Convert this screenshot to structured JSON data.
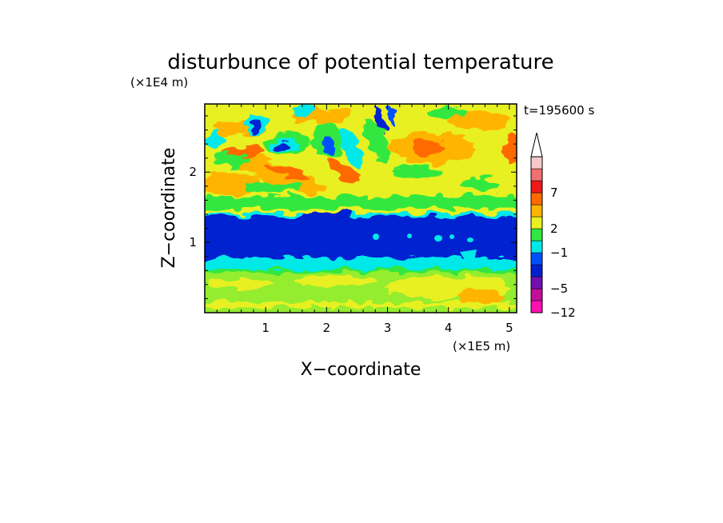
{
  "chart_data": {
    "type": "heatmap",
    "title": "disturbunce of potential temperature",
    "xlabel": "X−coordinate",
    "ylabel": "Z−coordinate",
    "x_unit": "(×1E5 m)",
    "y_unit": "(×1E4 m)",
    "time_label": "t=195600 s",
    "xlim": [
      0,
      5.12
    ],
    "ylim": [
      0,
      2.97
    ],
    "x_ticks": [
      "1",
      "2",
      "3",
      "4",
      "5"
    ],
    "y_ticks": [
      "1",
      "2"
    ],
    "colorbar": {
      "tick_labels": [
        "7",
        "2",
        "−1",
        "−5",
        "−12"
      ],
      "colors": [
        "#ff10b0",
        "#c0109a",
        "#7010b0",
        "#0020d0",
        "#0050ff",
        "#00e8e8",
        "#30e840",
        "#e8f020",
        "#ffb400",
        "#ff6a00",
        "#f01818",
        "#f07070",
        "#f8c8c8"
      ]
    },
    "fields": {
      "background_level": "green",
      "bands": [
        {
          "name": "lower strong negative band",
          "z_range": [
            0.88,
            1.33
          ],
          "level": "dark blue"
        },
        {
          "name": "upper band",
          "z_range": [
            1.4,
            2.97
          ],
          "level": "yellow/orange"
        },
        {
          "name": "low-level band",
          "z_range": [
            0,
            0.88
          ],
          "level": "green/yellow"
        }
      ],
      "notable_features": [
        {
          "name": "warm maximum",
          "x": 3.7,
          "z": 2.4,
          "level": "orange"
        },
        {
          "name": "cold cells",
          "x_range": [
            0.5,
            2.0
          ],
          "z_range": [
            2.2,
            2.9
          ],
          "level": "blue"
        },
        {
          "name": "tilted warm wave",
          "x_range": [
            0.5,
            2.5
          ],
          "z_range": [
            1.5,
            2.3
          ],
          "level": "orange"
        }
      ]
    }
  }
}
